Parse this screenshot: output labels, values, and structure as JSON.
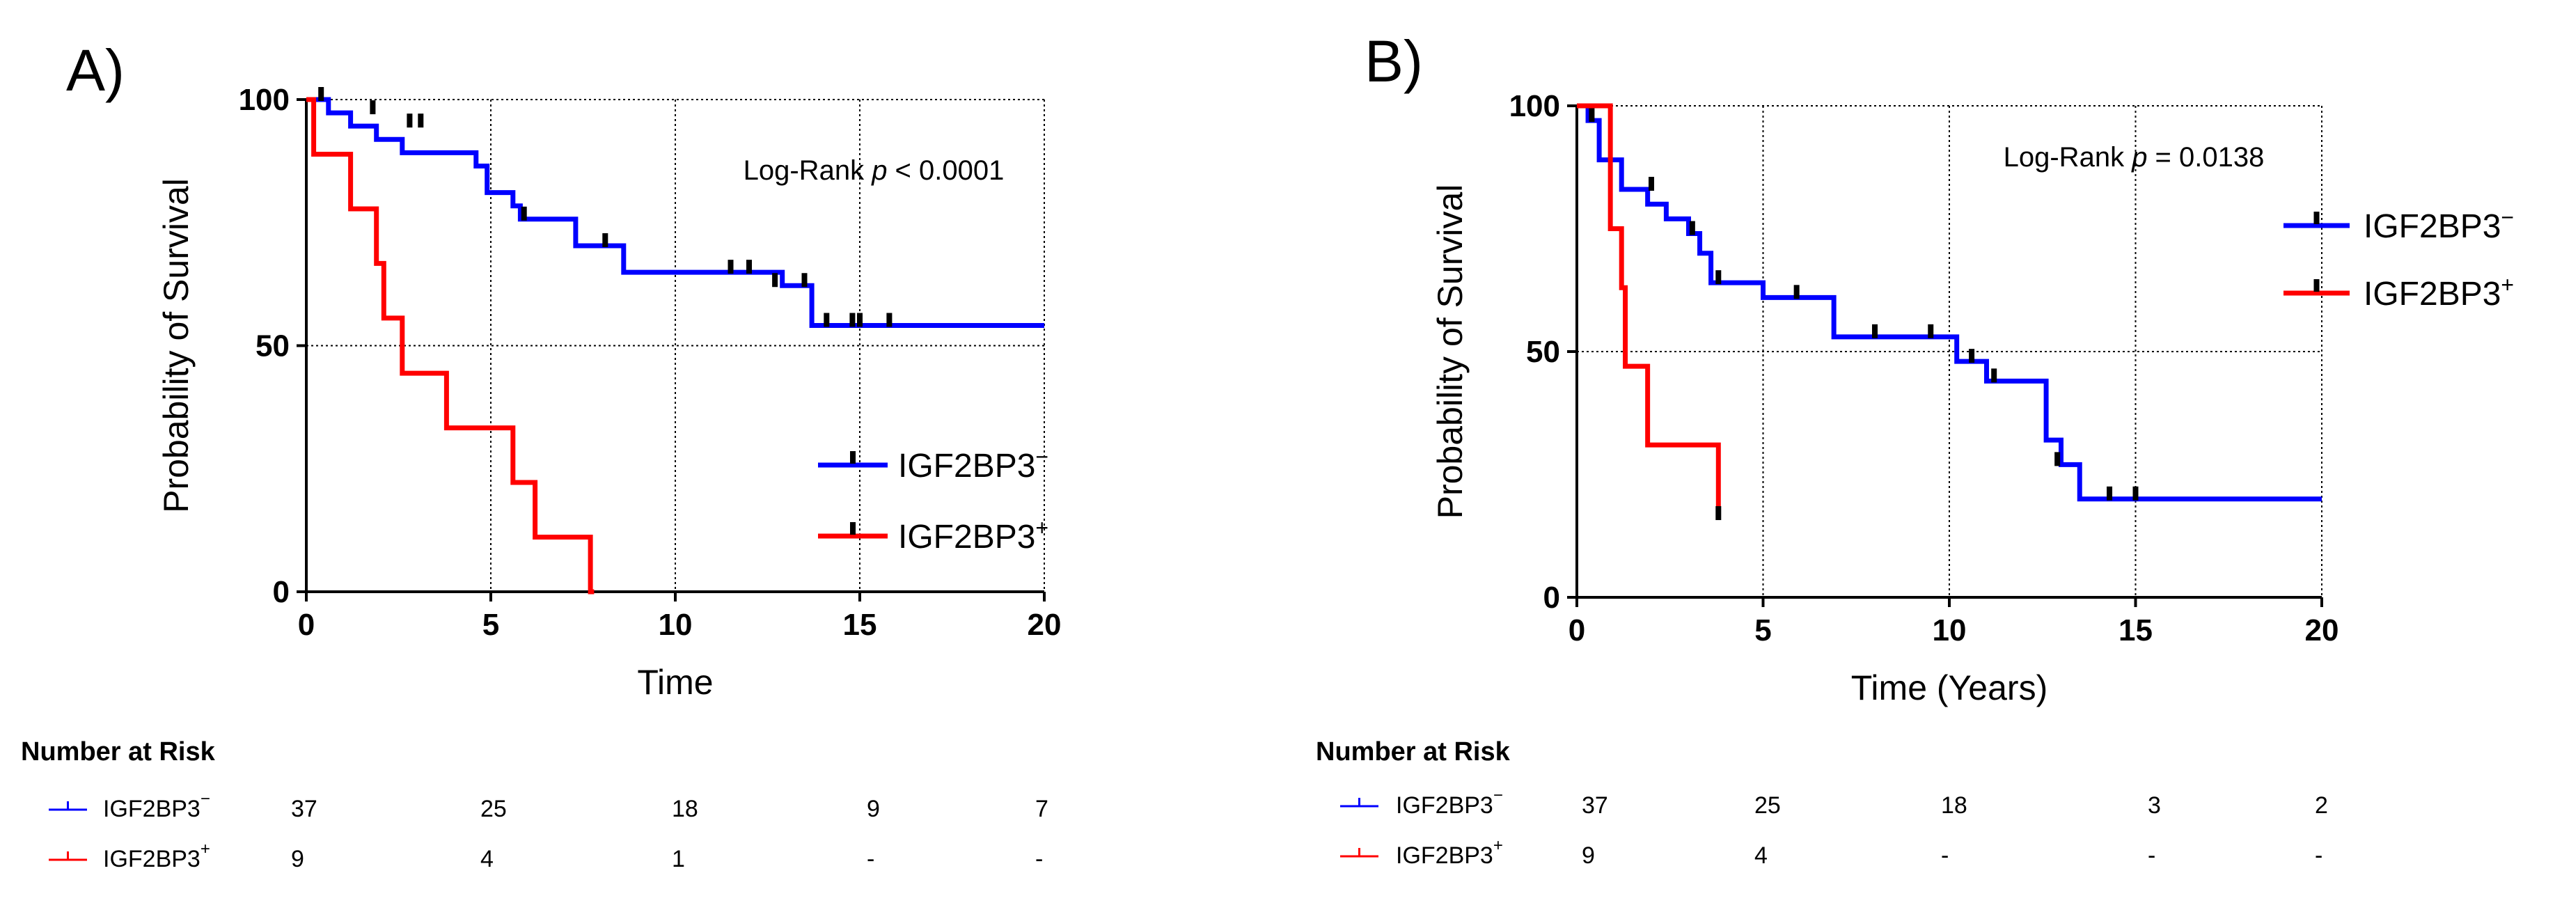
{
  "chart_data": [
    {
      "type": "line",
      "panel_label": "A)",
      "xlabel": "Time",
      "ylabel": "Probability of Survival",
      "xlim": [
        0,
        20
      ],
      "ylim": [
        0,
        100
      ],
      "xticks": [
        "0",
        "5",
        "10",
        "15",
        "20"
      ],
      "yticks": [
        "0",
        "50",
        "100"
      ],
      "grid": true,
      "annotation": {
        "pre": "Log-Rank ",
        "p": "p",
        "post": " < 0.0001"
      },
      "legend_position": "right-middle",
      "series": [
        {
          "name": "IGF2BP3",
          "sup": "-",
          "color": "#0000ff",
          "x": [
            0,
            0.6,
            1.2,
            1.9,
            2.6,
            4.6,
            4.9,
            5.6,
            5.8,
            7.3,
            8.6,
            12.9,
            13.7,
            20
          ],
          "y": [
            100,
            97.3,
            94.6,
            91.9,
            89.2,
            86.5,
            81.1,
            78.4,
            75.7,
            70.3,
            64.9,
            62.2,
            54.1,
            54.1
          ],
          "censor_x": [
            0.4,
            1.8,
            2.8,
            3.1,
            5.9,
            8.1,
            11.5,
            12.0,
            12.7,
            13.5,
            14.1,
            14.8,
            15.0,
            15.8
          ],
          "censor_y": [
            100,
            97.3,
            94.6,
            94.6,
            75.7,
            70.3,
            64.9,
            64.9,
            62.2,
            62.2,
            54.1,
            54.1,
            54.1,
            54.1
          ]
        },
        {
          "name": "IGF2BP3",
          "sup": "+",
          "color": "#ff0000",
          "x": [
            0,
            0.2,
            1.2,
            1.9,
            2.1,
            2.6,
            3.8,
            5.6,
            6.2,
            7.7,
            7.8
          ],
          "y": [
            100,
            88.9,
            77.8,
            66.7,
            55.6,
            44.4,
            33.3,
            22.2,
            11.1,
            0,
            0
          ],
          "censor_x": [],
          "censor_y": []
        }
      ],
      "risk_table": {
        "title": "Number at Risk",
        "rows": [
          {
            "name": "IGF2BP3",
            "sup": "-",
            "values": [
              "37",
              "25",
              "18",
              "9",
              "7"
            ]
          },
          {
            "name": "IGF2BP3",
            "sup": "+",
            "values": [
              "9",
              "4",
              "1",
              "-",
              "-"
            ]
          }
        ]
      }
    },
    {
      "type": "line",
      "panel_label": "B)",
      "xlabel": "Time (Years)",
      "ylabel": "Probability of Survival",
      "xlim": [
        0,
        20
      ],
      "ylim": [
        0,
        100
      ],
      "xticks": [
        "0",
        "5",
        "10",
        "15",
        "20"
      ],
      "yticks": [
        "0",
        "50",
        "100"
      ],
      "grid": true,
      "annotation": {
        "pre": "Log-Rank ",
        "p": "p",
        "post": " = 0.0138"
      },
      "legend_position": "top-right outside",
      "series": [
        {
          "name": "IGF2BP3",
          "sup": "-",
          "color": "#0000ff",
          "x": [
            0,
            0.3,
            0.6,
            1.2,
            1.9,
            2.4,
            3.0,
            3.3,
            3.6,
            5.0,
            6.9,
            10.2,
            11.0,
            12.6,
            13.0,
            13.5,
            20
          ],
          "y": [
            100,
            97,
            89,
            83,
            80,
            77,
            74,
            70,
            64,
            61,
            53,
            48,
            44,
            32,
            27,
            20,
            20
          ],
          "censor_x": [
            0.4,
            2.0,
            3.1,
            3.8,
            5.9,
            8.0,
            9.5,
            10.6,
            11.2,
            12.9,
            14.3,
            15.0
          ],
          "censor_y": [
            97,
            83,
            74,
            64,
            61,
            53,
            53,
            48,
            44,
            27,
            20,
            20
          ],
          "censor_style": "tick"
        },
        {
          "name": "IGF2BP3",
          "sup": "+",
          "color": "#ff0000",
          "x": [
            0,
            0.9,
            1.2,
            1.3,
            1.9,
            3.8
          ],
          "y": [
            100,
            75,
            63,
            47,
            31,
            16
          ],
          "censor_x": [
            3.8
          ],
          "censor_y": [
            16
          ]
        }
      ],
      "risk_table": {
        "title": "Number at Risk",
        "rows": [
          {
            "name": "IGF2BP3",
            "sup": "-",
            "values": [
              "37",
              "25",
              "18",
              "3",
              "2"
            ]
          },
          {
            "name": "IGF2BP3",
            "sup": "+",
            "values": [
              "9",
              "4",
              "-",
              "-",
              "-"
            ]
          }
        ]
      }
    }
  ]
}
